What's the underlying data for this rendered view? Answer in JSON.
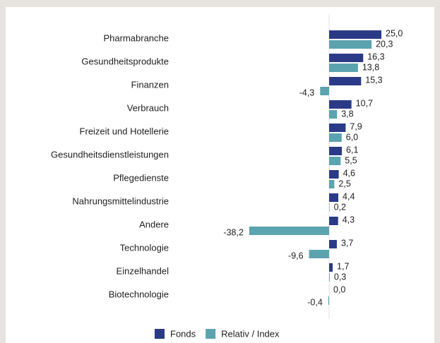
{
  "chart_data": {
    "type": "hbar",
    "categories": [
      "Pharmabranche",
      "Gesundheitsprodukte",
      "Finanzen",
      "Verbrauch",
      "Freizeit und Hotellerie",
      "Gesundheitsdienstleistungen",
      "Pflegedienste",
      "Nahrungsmittelindustrie",
      "Andere",
      "Technologie",
      "Einzelhandel",
      "Biotechnologie"
    ],
    "series": [
      {
        "name": "Fonds",
        "color": "#2b3a86",
        "values": [
          25.0,
          16.3,
          15.3,
          10.7,
          7.9,
          6.1,
          4.6,
          4.4,
          4.3,
          3.7,
          1.7,
          0.0
        ],
        "value_labels": [
          "25,0",
          "16,3",
          "15,3",
          "10,7",
          "7,9",
          "6,1",
          "4,6",
          "4,4",
          "4,3",
          "3,7",
          "1,7",
          "0,0"
        ]
      },
      {
        "name": "Relativ / Index",
        "color": "#5ba3af",
        "values": [
          20.3,
          13.8,
          -4.3,
          3.8,
          6.0,
          5.5,
          2.5,
          0.2,
          -38.2,
          -9.6,
          0.3,
          -0.4
        ],
        "value_labels": [
          "20,3",
          "13,8",
          "-4,3",
          "3,8",
          "6,0",
          "5,5",
          "2,5",
          "0,2",
          "-38,2",
          "-9,6",
          "0,3",
          "-0,4"
        ]
      }
    ],
    "xlim": [
      -40,
      30
    ],
    "legend": "bottom"
  }
}
